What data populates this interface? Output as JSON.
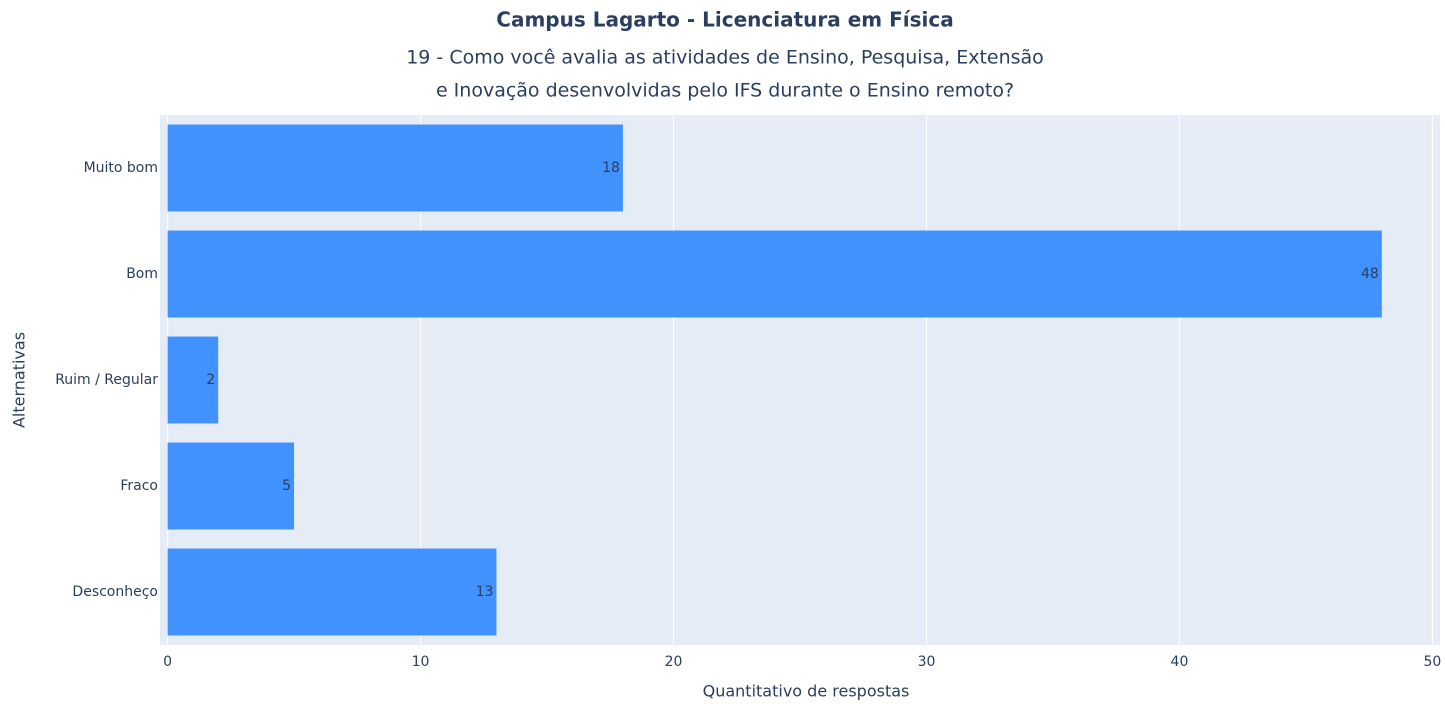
{
  "chart_data": {
    "type": "bar",
    "orientation": "horizontal",
    "title": "Campus Lagarto - Licenciatura em Física",
    "subtitle": [
      "19 - Como você avalia as atividades de Ensino, Pesquisa, Extensão",
      "e Inovação desenvolvidas pelo IFS durante o Ensino remoto?"
    ],
    "categories": [
      "Muito bom",
      "Bom",
      "Ruim / Regular",
      "Fraco",
      "Desconheço"
    ],
    "values": [
      18,
      48,
      2,
      5,
      13
    ],
    "color": "#4192ff",
    "xlabel": "Quantitativo de respostas",
    "ylabel": "Alternativas",
    "xlim": [
      -0.3,
      50.3
    ],
    "xticks": [
      0,
      10,
      20,
      30,
      40,
      50
    ],
    "grid": true
  }
}
